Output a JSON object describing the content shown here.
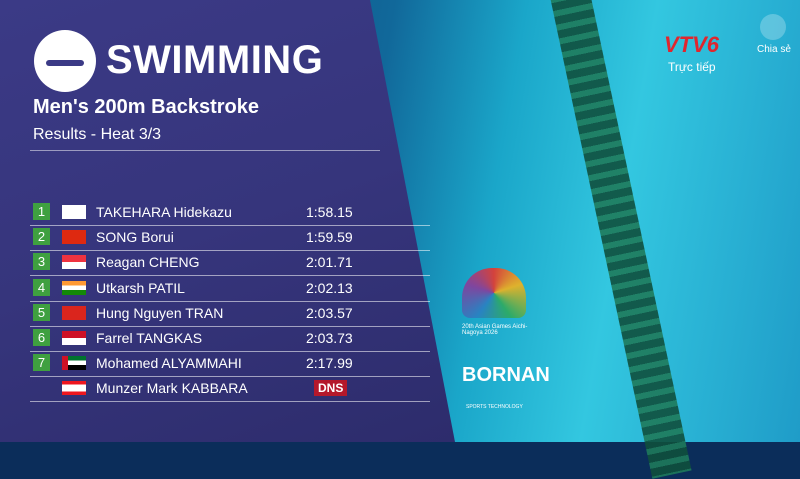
{
  "header": {
    "sport": "SWIMMING",
    "event": "Men's 200m Backstroke",
    "subtitle": "Results - Heat 3/3"
  },
  "table": {
    "rows": [
      {
        "rank": "1",
        "name": "TAKEHARA Hidekazu",
        "result": "1:58.15"
      },
      {
        "rank": "2",
        "name": "SONG Borui",
        "result": "1:59.59"
      },
      {
        "rank": "3",
        "name": "Reagan CHENG",
        "result": "2:01.71"
      },
      {
        "rank": "4",
        "name": "Utkarsh PATIL",
        "result": "2:02.13"
      },
      {
        "rank": "5",
        "name": "Hung Nguyen TRAN",
        "result": "2:03.57"
      },
      {
        "rank": "6",
        "name": "Farrel TANGKAS",
        "result": "2:03.73"
      },
      {
        "rank": "7",
        "name": "Mohamed ALYAMMAHI",
        "result": "2:17.99"
      },
      {
        "name": "Munzer Mark KABBARA",
        "result": "DNS"
      }
    ]
  },
  "overlay": {
    "channel": "VTV6",
    "live": "Trực tiếp",
    "share": "Chia sẻ",
    "games": "20th Asian Games Aichi-Nagoya 2026",
    "sponsor": "BORNAN",
    "sponsor_sub": "SPORTS TECHNOLOGY"
  }
}
